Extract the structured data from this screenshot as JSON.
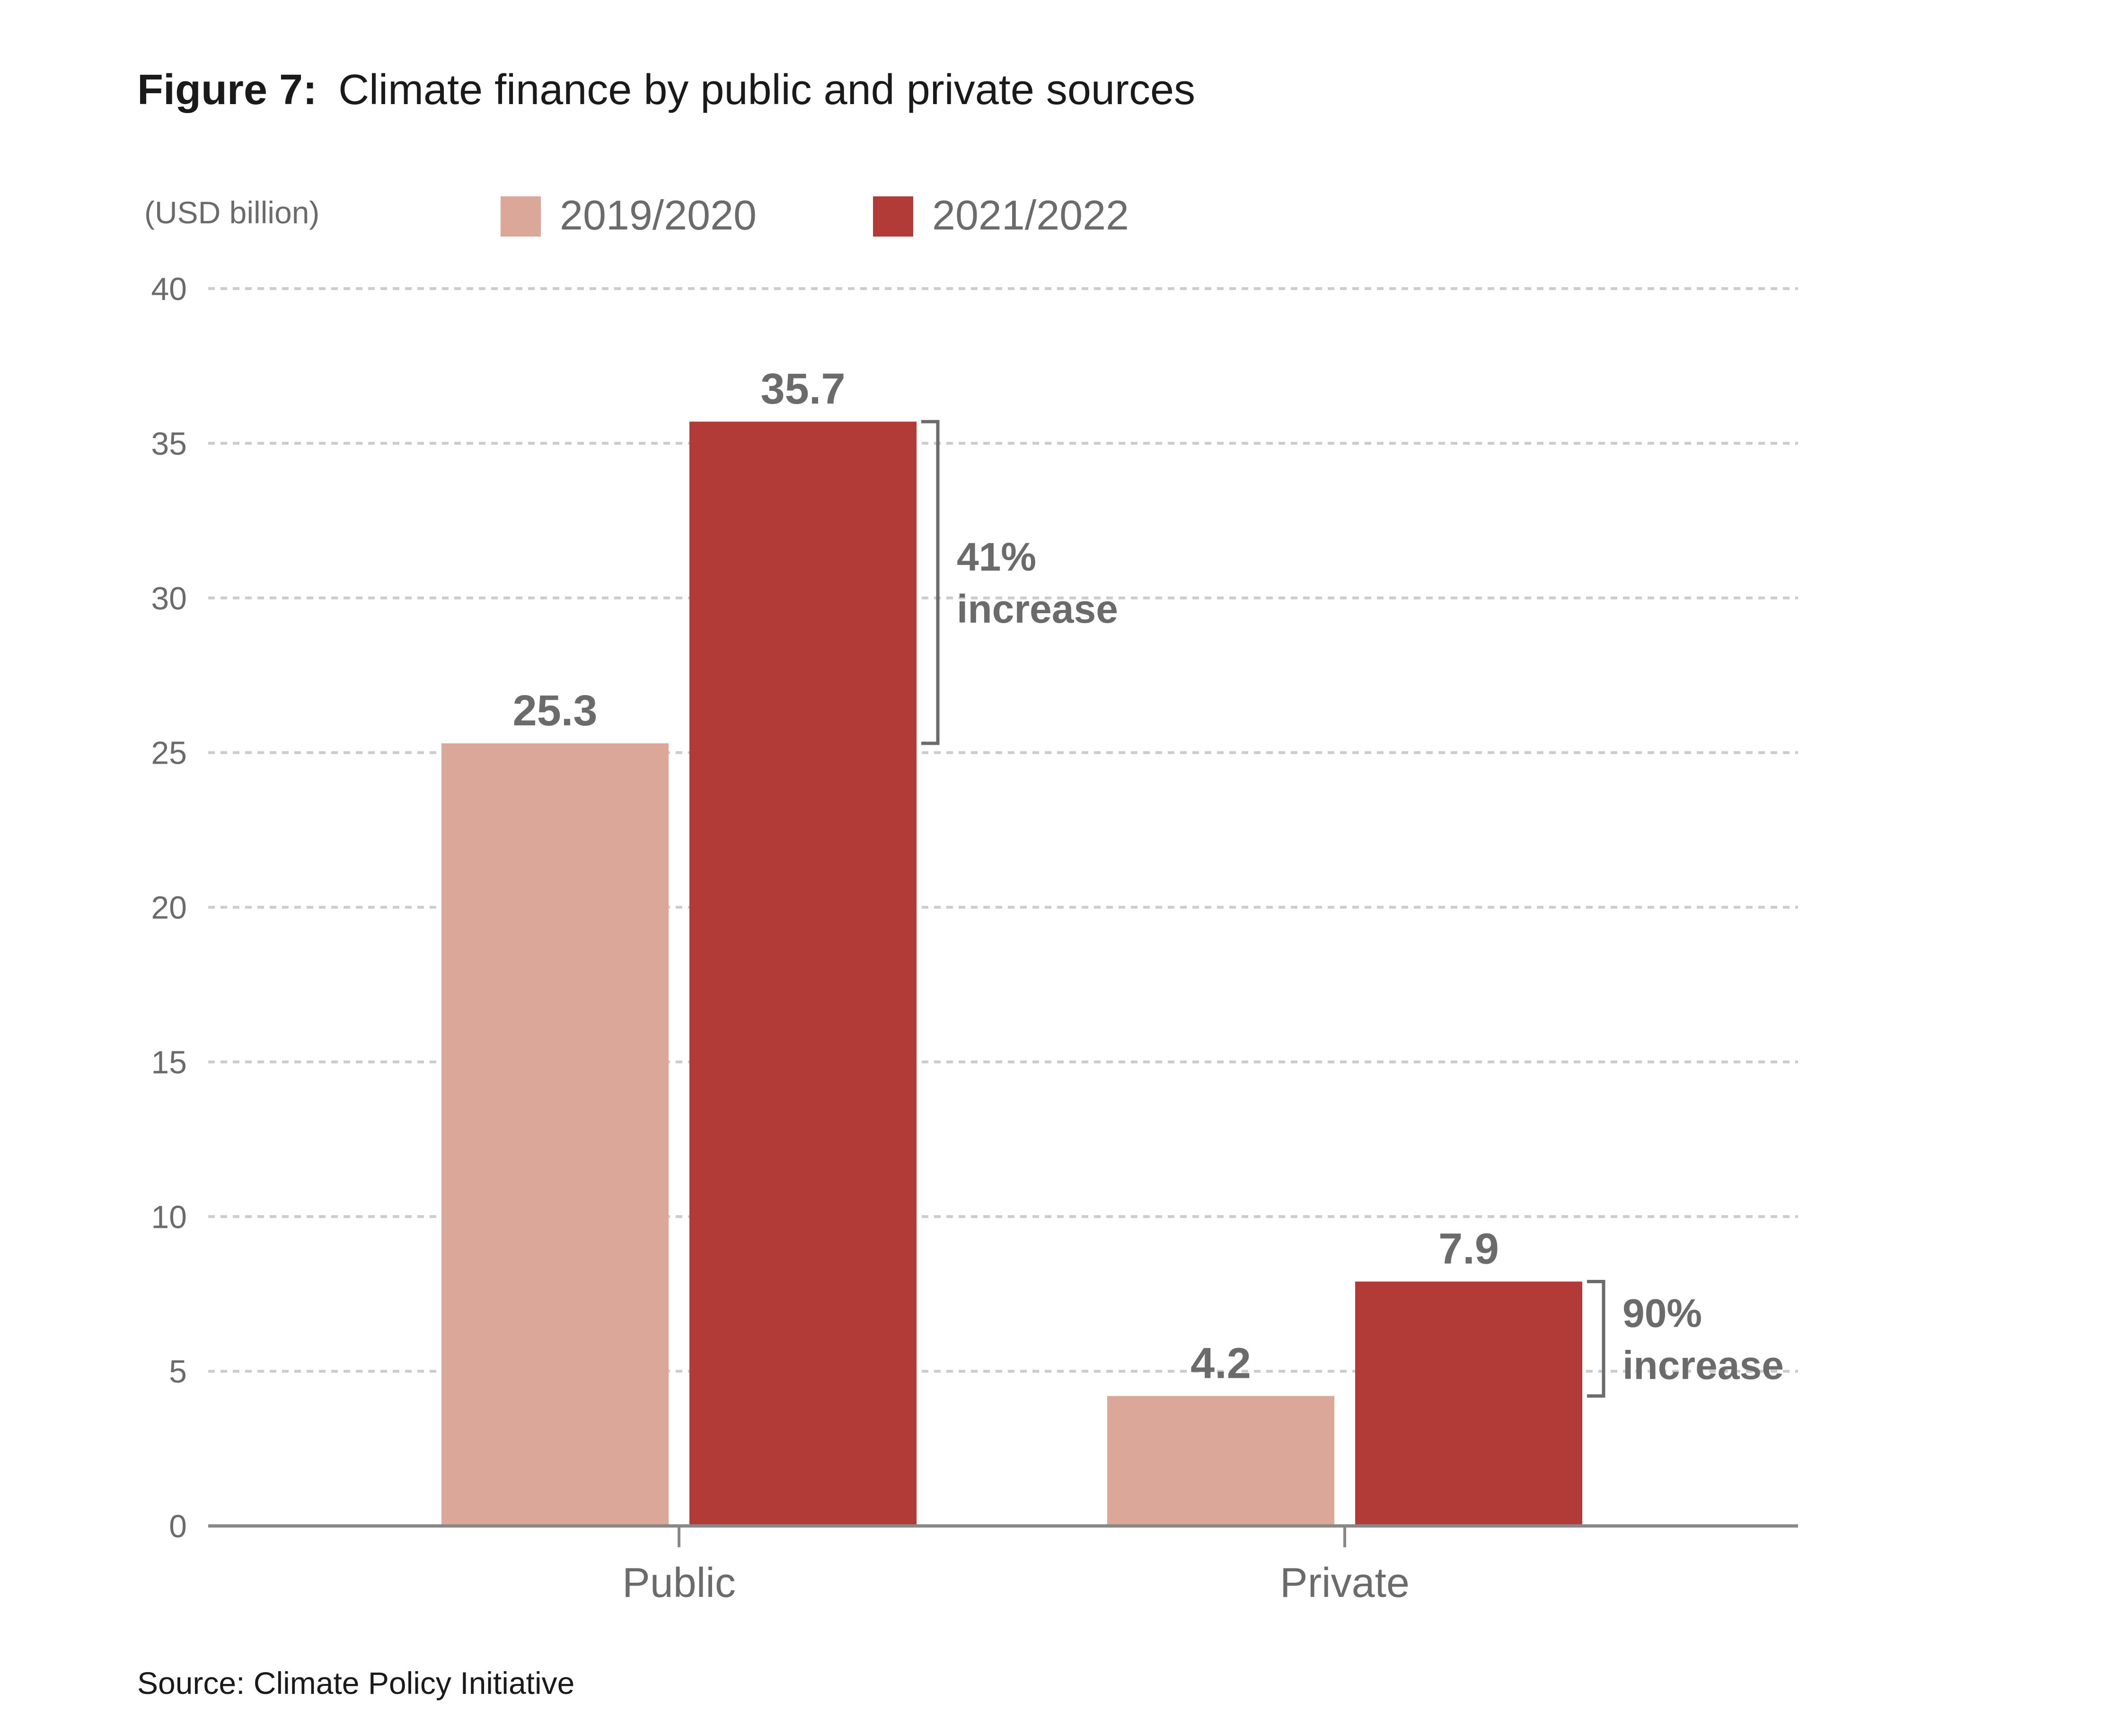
{
  "figure": {
    "label": "Figure 7:",
    "title": "Climate finance by public and private sources",
    "source": "Source: Climate Policy Initiative"
  },
  "chart_data": {
    "type": "bar",
    "unit_label": "(USD billion)",
    "categories": [
      "Public",
      "Private"
    ],
    "series": [
      {
        "name": "2019/2020",
        "values": [
          25.3,
          4.2
        ],
        "value_labels": [
          "25.3",
          "4.2"
        ],
        "color": "#dba799"
      },
      {
        "name": "2021/2022",
        "values": [
          35.7,
          7.9
        ],
        "value_labels": [
          "35.7",
          "7.9"
        ],
        "color": "#b23b37"
      }
    ],
    "ylim": [
      0,
      40
    ],
    "yticks": [
      0,
      5,
      10,
      15,
      20,
      25,
      30,
      35,
      40
    ],
    "grid": true,
    "legend_position": "top",
    "annotations": [
      {
        "category": "Public",
        "line1": "41%",
        "line2": "increase"
      },
      {
        "category": "Private",
        "line1": "90%",
        "line2": "increase"
      }
    ],
    "colors": {
      "axis": "#888888",
      "text_muted": "#6b6b6b",
      "text_dark": "#1a1a1a",
      "grid": "#cccccc"
    }
  }
}
